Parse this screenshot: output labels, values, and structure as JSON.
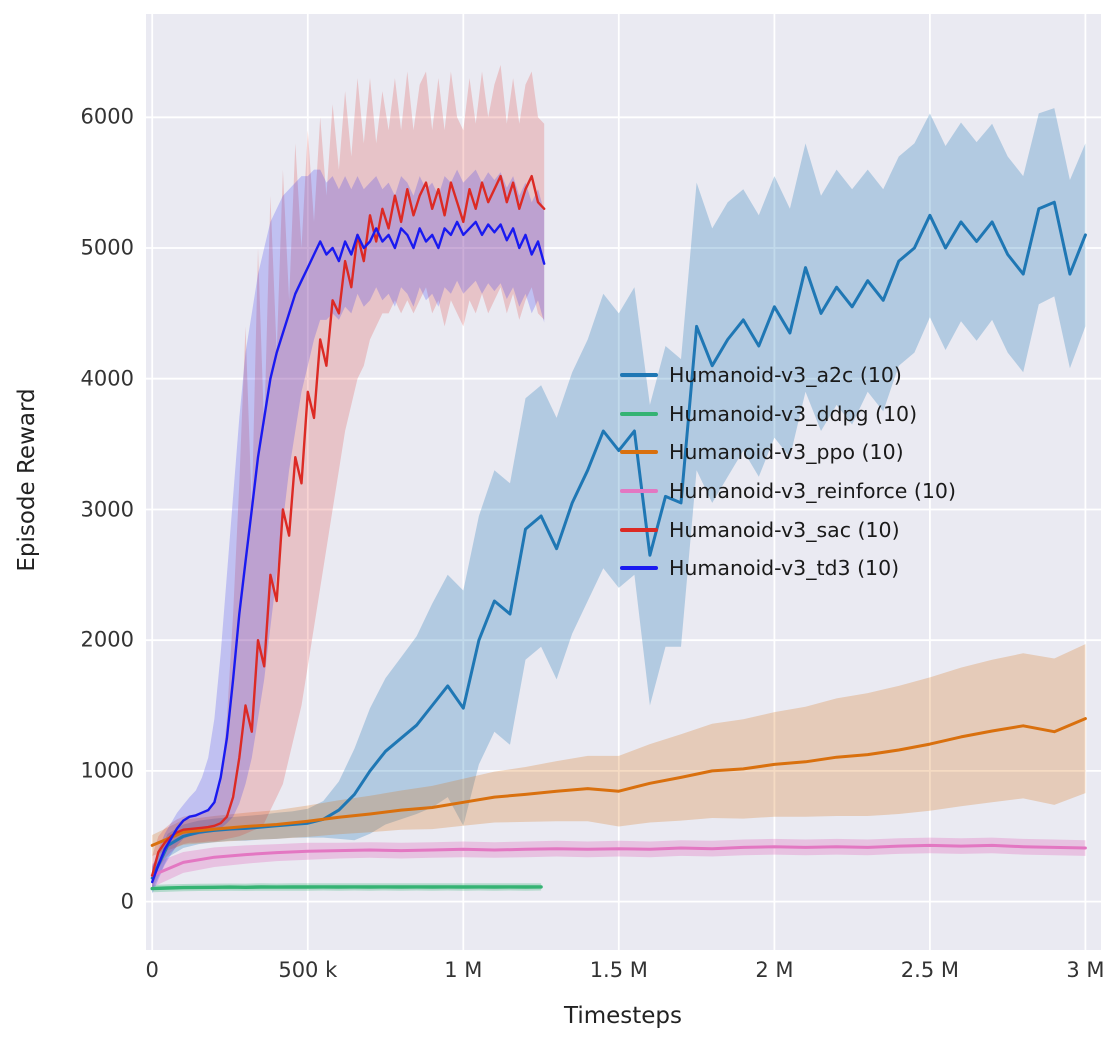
{
  "chart_data": {
    "type": "line",
    "title": "",
    "xlabel": "Timesteps",
    "ylabel": "Episode Reward",
    "x_unit": "millions of timesteps",
    "xlim": [
      -0.02,
      3.05
    ],
    "ylim": [
      -370,
      6790
    ],
    "grid": true,
    "plot_background": "#eaeaf2",
    "grid_color": "#ffffff",
    "tick_color": "#333333",
    "label_color": "#222222",
    "legend_position": "center right",
    "x_ticks": {
      "values": [
        0,
        0.5,
        1,
        1.5,
        2,
        2.5,
        3
      ],
      "labels": [
        "0",
        "500 k",
        "1 M",
        "1.5 M",
        "2 M",
        "2.5 M",
        "3 M"
      ]
    },
    "y_ticks": {
      "values": [
        0,
        1000,
        2000,
        3000,
        4000,
        5000,
        6000
      ],
      "labels": [
        "0",
        "1000",
        "2000",
        "3000",
        "4000",
        "5000",
        "6000"
      ]
    },
    "series": [
      {
        "key": "a2c",
        "name": "Humanoid-v3_a2c (10)",
        "color": "#1f77b4",
        "band_alpha": 0.27,
        "line_width": 3,
        "x_start": 0,
        "x_step": 0.05,
        "y": [
          180,
          430,
          500,
          530,
          545,
          555,
          560,
          570,
          580,
          590,
          600,
          630,
          700,
          820,
          1000,
          1150,
          1250,
          1350,
          1500,
          1650,
          1480,
          2000,
          2300,
          2200,
          2850,
          2950,
          2700,
          3050,
          3300,
          3600,
          3450,
          3600,
          2650,
          3100,
          3050,
          4400,
          4100,
          4300,
          4450,
          4250,
          4550,
          4350,
          4850,
          4500,
          4700,
          4550,
          4750,
          4600,
          4900,
          5000,
          5250,
          5000,
          5200,
          5050,
          5200,
          4950,
          4800,
          5300,
          5350,
          4800,
          5100
        ],
        "spread": [
          90,
          90,
          90,
          90,
          90,
          90,
          95,
          95,
          100,
          100,
          110,
          140,
          220,
          350,
          480,
          560,
          620,
          680,
          780,
          850,
          900,
          950,
          1000,
          1000,
          1000,
          1000,
          1000,
          1000,
          1000,
          1050,
          1050,
          1100,
          1150,
          1150,
          1100,
          1100,
          1050,
          1050,
          1000,
          1000,
          1000,
          950,
          950,
          900,
          900,
          900,
          850,
          850,
          800,
          800,
          780,
          780,
          760,
          760,
          750,
          750,
          750,
          730,
          720,
          720,
          700
        ]
      },
      {
        "key": "ddpg",
        "name": "Humanoid-v3_ddpg (10)",
        "color": "#35b373",
        "band_alpha": 0.3,
        "line_width": 3.4,
        "x_start": 0,
        "x_step": 0.05,
        "y": [
          100,
          104,
          107,
          109,
          110,
          111,
          110,
          112,
          111,
          112,
          112,
          113,
          112,
          113,
          112,
          113,
          112,
          113,
          112,
          113,
          112,
          113,
          112,
          113,
          112,
          113
        ],
        "spread": 28
      },
      {
        "key": "ppo",
        "name": "Humanoid-v3_ppo (10)",
        "color": "#d9700e",
        "band_alpha": 0.25,
        "line_width": 3,
        "x_start": 0,
        "x_step": 0.1,
        "y": [
          430,
          530,
          555,
          575,
          590,
          615,
          645,
          670,
          700,
          720,
          760,
          800,
          820,
          845,
          865,
          845,
          905,
          950,
          1000,
          1015,
          1050,
          1070,
          1105,
          1125,
          1160,
          1205,
          1260,
          1305,
          1345,
          1300,
          1400
        ],
        "spread": [
          80,
          95,
          100,
          105,
          110,
          120,
          130,
          140,
          150,
          165,
          180,
          195,
          210,
          230,
          250,
          270,
          300,
          330,
          360,
          380,
          400,
          420,
          450,
          470,
          490,
          510,
          530,
          545,
          555,
          560,
          570
        ]
      },
      {
        "key": "reinforce",
        "name": "Humanoid-v3_reinforce (10)",
        "color": "#e377c2",
        "band_alpha": 0.35,
        "line_width": 3,
        "x_start": 0,
        "x_step": 0.1,
        "y": [
          200,
          300,
          340,
          360,
          375,
          385,
          390,
          395,
          390,
          395,
          400,
          395,
          400,
          405,
          400,
          405,
          400,
          410,
          405,
          415,
          420,
          415,
          420,
          415,
          425,
          430,
          425,
          430,
          420,
          415,
          410
        ],
        "spread": [
          90,
          80,
          75,
          70,
          65,
          65,
          60,
          60,
          60,
          60,
          60,
          60,
          60,
          60,
          60,
          60,
          60,
          60,
          60,
          60,
          60,
          60,
          60,
          60,
          60,
          60,
          60,
          60,
          60,
          60,
          60
        ]
      },
      {
        "key": "sac",
        "name": "Humanoid-v3_sac (10)",
        "color": "#dc2a24",
        "band_alpha": 0.2,
        "line_width": 2.4,
        "x_start": 0,
        "x_step": 0.02,
        "y": [
          200,
          380,
          450,
          500,
          530,
          550,
          555,
          560,
          565,
          570,
          580,
          600,
          650,
          800,
          1100,
          1500,
          1300,
          2000,
          1800,
          2500,
          2300,
          3000,
          2800,
          3400,
          3200,
          3900,
          3700,
          4300,
          4100,
          4600,
          4500,
          4900,
          4700,
          5100,
          4900,
          5250,
          5050,
          5300,
          5150,
          5400,
          5200,
          5450,
          5250,
          5400,
          5500,
          5300,
          5450,
          5250,
          5500,
          5350,
          5200,
          5450,
          5300,
          5500,
          5350,
          5450,
          5550,
          5350,
          5500,
          5300,
          5450,
          5550,
          5350,
          5300
        ],
        "lo": [
          100,
          250,
          330,
          380,
          420,
          440,
          450,
          450,
          455,
          460,
          460,
          470,
          480,
          490,
          500,
          520,
          540,
          560,
          600,
          700,
          800,
          900,
          1100,
          1300,
          1500,
          1800,
          2100,
          2400,
          2700,
          3000,
          3300,
          3600,
          3800,
          4000,
          4100,
          4300,
          4400,
          4500,
          4500,
          4600,
          4500,
          4600,
          4500,
          4600,
          4700,
          4500,
          4600,
          4400,
          4600,
          4500,
          4400,
          4600,
          4500,
          4650,
          4500,
          4600,
          4700,
          4500,
          4650,
          4450,
          4600,
          4700,
          4500,
          4450
        ],
        "hi": [
          350,
          500,
          560,
          600,
          630,
          650,
          660,
          670,
          680,
          700,
          750,
          900,
          1400,
          2200,
          3200,
          4400,
          3000,
          5000,
          3600,
          5400,
          4200,
          5600,
          4600,
          5800,
          5000,
          5900,
          5200,
          6000,
          5400,
          6100,
          5600,
          6200,
          5700,
          6300,
          5800,
          6300,
          5800,
          6200,
          5900,
          6300,
          5900,
          6350,
          5900,
          6250,
          6350,
          5900,
          6300,
          5900,
          6350,
          6000,
          5900,
          6300,
          5950,
          6350,
          6000,
          6250,
          6400,
          5950,
          6300,
          5950,
          6250,
          6350,
          6000,
          5950
        ]
      },
      {
        "key": "td3",
        "name": "Humanoid-v3_td3 (10)",
        "color": "#1a1af0",
        "band_alpha": 0.2,
        "line_width": 2.4,
        "x_start": 0,
        "x_step": 0.02,
        "y": [
          150,
          280,
          400,
          480,
          560,
          620,
          650,
          660,
          680,
          700,
          760,
          950,
          1250,
          1700,
          2200,
          2600,
          3000,
          3400,
          3700,
          4000,
          4200,
          4350,
          4500,
          4650,
          4750,
          4850,
          4950,
          5050,
          4950,
          5000,
          4900,
          5050,
          4950,
          5100,
          5000,
          5050,
          5150,
          5050,
          5100,
          5000,
          5150,
          5100,
          5000,
          5150,
          5050,
          5100,
          5000,
          5150,
          5100,
          5200,
          5100,
          5150,
          5200,
          5100,
          5180,
          5120,
          5180,
          5060,
          5150,
          5000,
          5100,
          4950,
          5050,
          4880
        ],
        "lo": [
          60,
          170,
          280,
          360,
          430,
          480,
          500,
          510,
          520,
          530,
          540,
          560,
          600,
          650,
          750,
          900,
          1100,
          1400,
          1700,
          2100,
          2500,
          2900,
          3300,
          3600,
          3900,
          4100,
          4300,
          4450,
          4450,
          4500,
          4450,
          4550,
          4500,
          4650,
          4550,
          4600,
          4700,
          4600,
          4650,
          4550,
          4700,
          4650,
          4550,
          4700,
          4600,
          4650,
          4550,
          4700,
          4650,
          4750,
          4650,
          4700,
          4750,
          4650,
          4730,
          4670,
          4730,
          4610,
          4700,
          4550,
          4650,
          4500,
          4600,
          4430
        ],
        "hi": [
          260,
          400,
          520,
          600,
          680,
          740,
          800,
          850,
          950,
          1100,
          1400,
          1900,
          2500,
          3100,
          3700,
          4200,
          4500,
          4800,
          5000,
          5200,
          5300,
          5400,
          5450,
          5500,
          5550,
          5550,
          5600,
          5600,
          5500,
          5550,
          5450,
          5550,
          5450,
          5550,
          5450,
          5500,
          5550,
          5450,
          5500,
          5400,
          5550,
          5500,
          5400,
          5550,
          5450,
          5500,
          5400,
          5550,
          5500,
          5600,
          5500,
          5550,
          5600,
          5500,
          5580,
          5520,
          5580,
          5460,
          5550,
          5400,
          5500,
          5350,
          5450,
          5280
        ]
      }
    ]
  }
}
